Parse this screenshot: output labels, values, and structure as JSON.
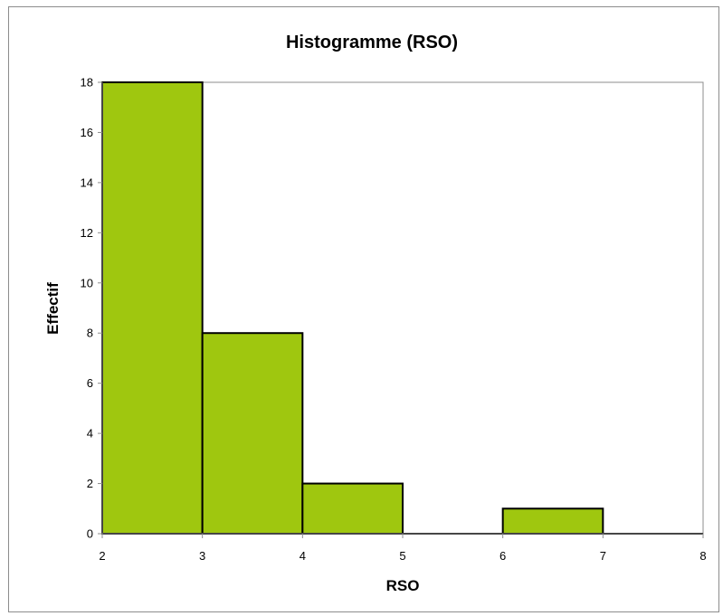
{
  "chart_data": {
    "type": "bar",
    "title": "Histogramme (RSO)",
    "xlabel": "RSO",
    "ylabel": "Effectif",
    "bins": [
      {
        "from": 2,
        "to": 3,
        "value": 18
      },
      {
        "from": 3,
        "to": 4,
        "value": 8
      },
      {
        "from": 4,
        "to": 5,
        "value": 2
      },
      {
        "from": 5,
        "to": 6,
        "value": 0
      },
      {
        "from": 6,
        "to": 7,
        "value": 1
      },
      {
        "from": 7,
        "to": 8,
        "value": 0
      }
    ],
    "xlim": [
      2,
      8
    ],
    "ylim": [
      0,
      18
    ],
    "x_ticks": [
      "2",
      "3",
      "4",
      "5",
      "6",
      "7",
      "8"
    ],
    "y_ticks": [
      "0",
      "2",
      "4",
      "6",
      "8",
      "10",
      "12",
      "14",
      "16",
      "18"
    ],
    "bar_color": "#9fc70f",
    "outline_color": "#000000",
    "grid": false,
    "legend": "none"
  }
}
